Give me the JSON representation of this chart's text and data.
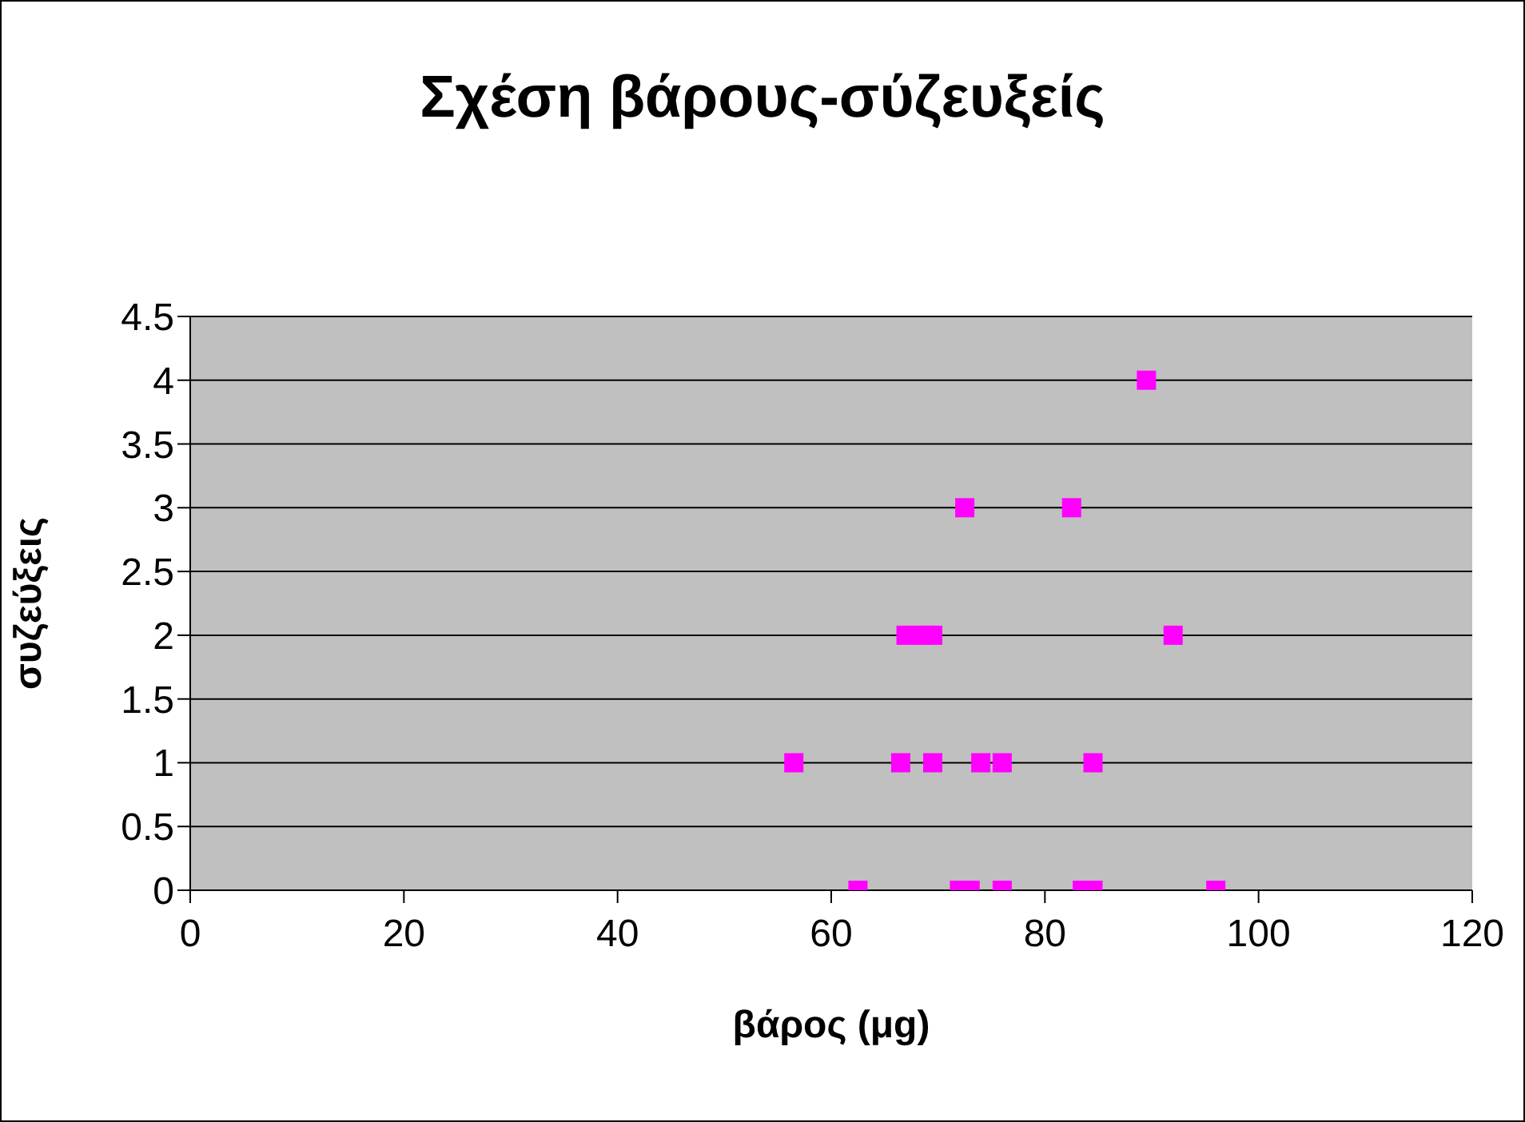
{
  "chart_data": {
    "type": "scatter",
    "title": "Σχέση βάρους-σύζευξείς",
    "xlabel": "βάρος (μg)",
    "ylabel": "συζεύξεις",
    "series": [
      {
        "color": "#ff00ff",
        "x": [
          62.5,
          72,
          73,
          76,
          83.5,
          84.5,
          96,
          56.5,
          66.5,
          69.5,
          74,
          76,
          84.5,
          67,
          68.5,
          69.5,
          92,
          72.5,
          82.5,
          89.5
        ],
        "values": [
          0,
          0,
          0,
          0,
          0,
          0,
          0,
          1,
          1,
          1,
          1,
          1,
          1,
          2,
          2,
          2,
          2,
          3,
          3,
          4
        ]
      }
    ],
    "xlim": [
      0,
      120
    ],
    "xticks": [
      0,
      20,
      40,
      60,
      80,
      100,
      120
    ],
    "ylim": [
      0,
      4.5
    ],
    "yticks": [
      0,
      0.5,
      1,
      1.5,
      2,
      2.5,
      3,
      3.5,
      4,
      4.5
    ],
    "grid": "y",
    "legend": false,
    "marker": "square"
  }
}
